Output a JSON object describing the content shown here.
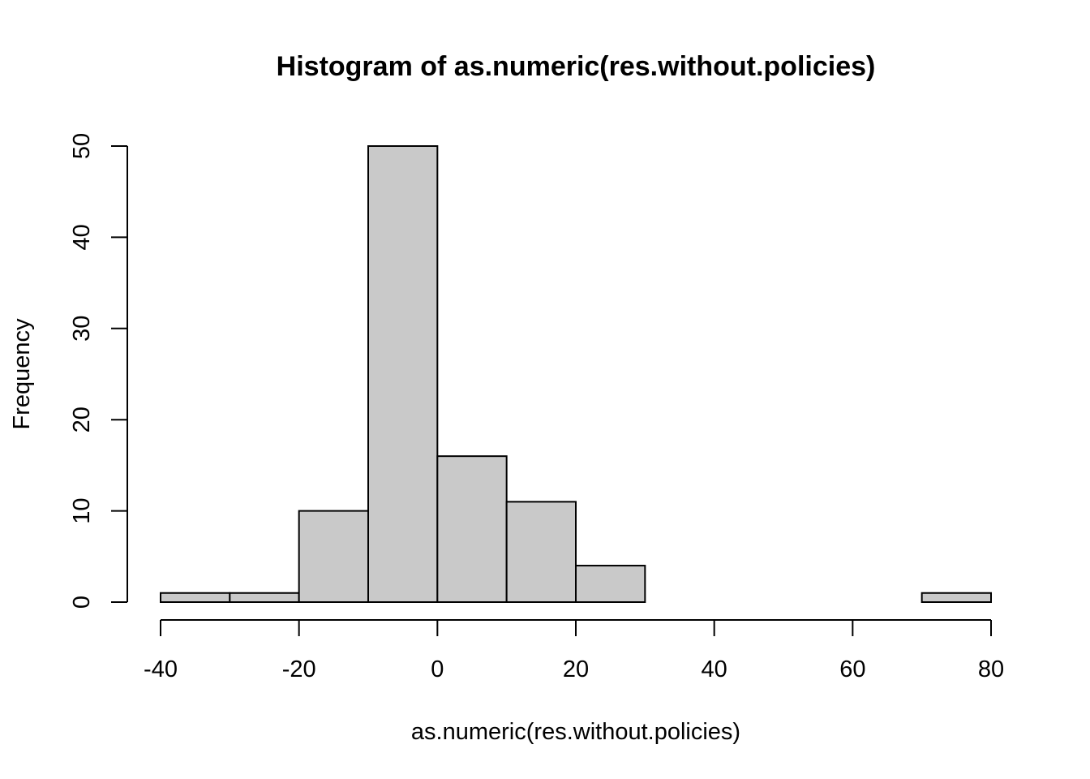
{
  "chart_data": {
    "type": "bar",
    "title": "Histogram of as.numeric(res.without.policies)",
    "xlabel": "as.numeric(res.without.policies)",
    "ylabel": "Frequency",
    "bins": [
      {
        "from": -40,
        "to": -30,
        "count": 1
      },
      {
        "from": -30,
        "to": -20,
        "count": 1
      },
      {
        "from": -20,
        "to": -10,
        "count": 10
      },
      {
        "from": -10,
        "to": 0,
        "count": 50
      },
      {
        "from": 0,
        "to": 10,
        "count": 16
      },
      {
        "from": 10,
        "to": 20,
        "count": 11
      },
      {
        "from": 20,
        "to": 30,
        "count": 4
      },
      {
        "from": 30,
        "to": 40,
        "count": 0
      },
      {
        "from": 40,
        "to": 50,
        "count": 0
      },
      {
        "from": 50,
        "to": 60,
        "count": 0
      },
      {
        "from": 60,
        "to": 70,
        "count": 0
      },
      {
        "from": 70,
        "to": 80,
        "count": 1
      }
    ],
    "xlim": [
      -40,
      80
    ],
    "ylim": [
      0,
      50
    ],
    "x_ticks": [
      -40,
      -20,
      0,
      20,
      40,
      60,
      80
    ],
    "y_ticks": [
      0,
      10,
      20,
      30,
      40,
      50
    ],
    "grid": false,
    "colors": {
      "bar_fill": "#c9c9c9",
      "bar_stroke": "#000000"
    }
  }
}
